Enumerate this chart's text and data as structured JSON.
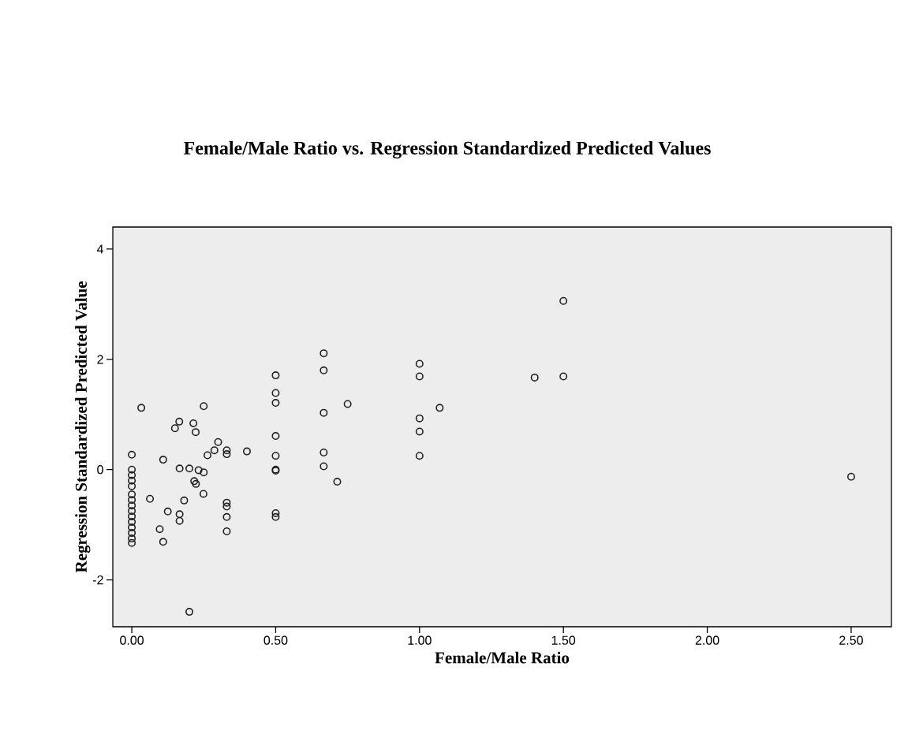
{
  "chart_data": {
    "type": "scatter",
    "title": "Female/Male Ratio vs. Regression Standardized Predicted Values",
    "xlabel": "Female/Male Ratio",
    "ylabel": "Regression Standardized Predicted Value",
    "xlim": [
      -0.066,
      2.64
    ],
    "ylim": [
      -2.85,
      4.4
    ],
    "xticks": [
      {
        "value": 0,
        "label": "0.00"
      },
      {
        "value": 0.5,
        "label": "0.50"
      },
      {
        "value": 1,
        "label": "1.00"
      },
      {
        "value": 1.5,
        "label": "1.50"
      },
      {
        "value": 2,
        "label": "2.00"
      },
      {
        "value": 2.5,
        "label": "2.50"
      }
    ],
    "yticks": [
      -2,
      0,
      2,
      4
    ],
    "marker": "circle",
    "grid": false,
    "series": [
      {
        "color": "#222222",
        "x": [
          0,
          0,
          0,
          0,
          0,
          0,
          0,
          0,
          0,
          0,
          0,
          0,
          0,
          0,
          0,
          0.033,
          0.25,
          0.165,
          0.15,
          0.214,
          0.222,
          0.3,
          0.287,
          0.263,
          0.33,
          0.33,
          0.4,
          0.109,
          0.166,
          0.2,
          0.232,
          0.25,
          0.217,
          0.223,
          0.249,
          0.063,
          0.182,
          0.33,
          0.33,
          0.33,
          0.33,
          0.125,
          0.166,
          0.166,
          0.097,
          0.109,
          0.2,
          0.5,
          0.5,
          0.5,
          0.5,
          0.5,
          0.5,
          0.5,
          0.5,
          0.5,
          0.667,
          0.667,
          0.667,
          0.667,
          0.667,
          0.75,
          0.714,
          1,
          1,
          1,
          1,
          1,
          1.07,
          1.4,
          1.5,
          1.5,
          2.5
        ],
        "values": [
          0.27,
          0.0,
          -0.2,
          -0.3,
          -0.45,
          -0.55,
          -0.65,
          -0.75,
          -0.85,
          -0.95,
          -1.05,
          -1.15,
          -1.25,
          -1.33,
          -0.1,
          1.12,
          1.15,
          0.87,
          0.75,
          0.84,
          0.68,
          0.5,
          0.35,
          0.26,
          0.35,
          0.28,
          0.33,
          0.18,
          0.02,
          0.02,
          -0.01,
          -0.05,
          -0.21,
          -0.26,
          -0.44,
          -0.53,
          -0.56,
          -0.6,
          -0.67,
          -0.86,
          -1.12,
          -0.76,
          -0.81,
          -0.93,
          -1.08,
          -1.31,
          -2.58,
          1.71,
          1.39,
          1.21,
          0.61,
          0.25,
          0.0,
          -0.02,
          -0.79,
          -0.86,
          2.11,
          1.8,
          1.03,
          0.31,
          0.06,
          1.19,
          -0.22,
          1.92,
          1.69,
          0.93,
          0.69,
          0.25,
          1.12,
          1.67,
          1.69,
          3.06,
          -0.13
        ]
      }
    ]
  }
}
